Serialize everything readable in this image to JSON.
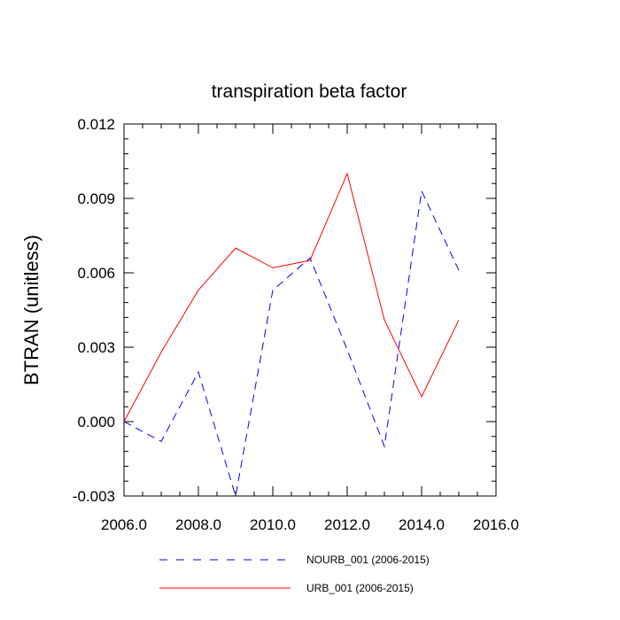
{
  "chart_data": {
    "type": "line",
    "title": "transpiration beta factor",
    "xlabel": "",
    "ylabel": "BTRAN  (unitless)",
    "xlim": [
      2006.0,
      2016.0
    ],
    "ylim": [
      -0.003,
      0.012
    ],
    "x_ticks": [
      "2006.0",
      "2008.0",
      "2010.0",
      "2012.0",
      "2014.0",
      "2016.0"
    ],
    "y_ticks": [
      "-0.003",
      "0.000",
      "0.003",
      "0.006",
      "0.009",
      "0.012"
    ],
    "x": [
      2006,
      2007,
      2008,
      2009,
      2010,
      2011,
      2012,
      2013,
      2014,
      2015
    ],
    "series": [
      {
        "name": "NOURB_001 (2006-2015)",
        "color": "#0000ff",
        "style": "dashed",
        "values": [
          0.0,
          -0.0008,
          0.002,
          -0.003,
          0.0053,
          0.0066,
          0.0029,
          -0.001,
          0.0093,
          0.0061
        ]
      },
      {
        "name": "URB_001 (2006-2015)",
        "color": "#ff0000",
        "style": "solid",
        "values": [
          0.0,
          0.0028,
          0.0053,
          0.007,
          0.0062,
          0.0065,
          0.01,
          0.0041,
          0.001,
          0.0041
        ]
      }
    ],
    "grid": false,
    "legend_position": "bottom"
  }
}
